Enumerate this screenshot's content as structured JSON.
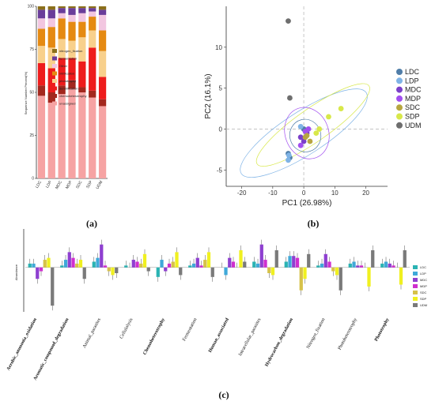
{
  "panels": {
    "a": "(a)",
    "b": "(b)",
    "c": "(c)"
  },
  "chart_data": [
    {
      "type": "bar",
      "stacked": true,
      "ylabel": "Sequence Number Percent(%)",
      "ylim": [
        0,
        100
      ],
      "yticks": [
        0,
        25,
        50,
        75,
        100
      ],
      "categories": [
        "LDC",
        "LDP",
        "MDC",
        "MDP",
        "SDC",
        "SDP",
        "UDM"
      ],
      "legend_position": "right",
      "series": [
        {
          "name": "unassigned",
          "color": "#f6a3a3",
          "values": [
            48,
            44,
            49,
            52,
            50,
            47,
            42
          ]
        },
        {
          "name": "chemoheterotrophy",
          "color": "#a3281e",
          "values": [
            6,
            6,
            5,
            5,
            3,
            4,
            4
          ]
        },
        {
          "name": "denitrification",
          "color": "#ee1c1c",
          "values": [
            13,
            14,
            16,
            13,
            15,
            25,
            13
          ]
        },
        {
          "name": "phototrophy",
          "color": "#f8d08c",
          "values": [
            10,
            12,
            11,
            10,
            14,
            10,
            15
          ]
        },
        {
          "name": "nitrification",
          "color": "#e58a12",
          "values": [
            10,
            12,
            12,
            11,
            9,
            8,
            12
          ]
        },
        {
          "name": "Other",
          "color": "#f2c6e0",
          "values": [
            6,
            5,
            3,
            4,
            5,
            3,
            9
          ]
        },
        {
          "name": "fermentation",
          "color": "#6a3d9a",
          "values": [
            5,
            5,
            3,
            4,
            3,
            2,
            3
          ]
        },
        {
          "name": "nitrogen_fixation",
          "color": "#8b6f1a",
          "values": [
            2,
            2,
            1,
            1,
            1,
            1,
            2
          ]
        }
      ],
      "legend_order": [
        "nitrogen_fixation",
        "fermentation",
        "Other",
        "nitrification",
        "phototrophy",
        "denitrification",
        "chemoheterotrophy",
        "unassigned"
      ]
    },
    {
      "type": "scatter",
      "xlabel": "PC1 (26.98%)",
      "ylabel": "PC2 (16.1%)",
      "xlim": [
        -25,
        27
      ],
      "ylim": [
        -7,
        15
      ],
      "xticks": [
        -20,
        -10,
        0,
        10,
        20
      ],
      "yticks": [
        -5,
        0,
        5,
        10
      ],
      "legend_position": "right",
      "series": [
        {
          "name": "LDC",
          "color": "#4f7da8",
          "points": [
            [
              -5,
              -3
            ],
            [
              -4.5,
              -3.5
            ],
            [
              0,
              0
            ]
          ]
        },
        {
          "name": "LDP",
          "color": "#7fb3e6",
          "points": [
            [
              -5,
              -3.8
            ],
            [
              -4.8,
              -3.2
            ],
            [
              -1,
              0.3
            ]
          ]
        },
        {
          "name": "MDC",
          "color": "#7b3fc9",
          "points": [
            [
              -1,
              -1
            ],
            [
              0,
              -1.5
            ],
            [
              1,
              -0.5
            ]
          ]
        },
        {
          "name": "MDP",
          "color": "#a24ff0",
          "points": [
            [
              -1,
              -2
            ],
            [
              0.5,
              -0.3
            ],
            [
              1.5,
              0
            ]
          ]
        },
        {
          "name": "SDC",
          "color": "#b7a640",
          "points": [
            [
              2,
              -1.5
            ],
            [
              1,
              -0.8
            ],
            [
              0.5,
              -1
            ]
          ]
        },
        {
          "name": "SDP",
          "color": "#d8e84a",
          "points": [
            [
              5,
              0
            ],
            [
              8,
              1.5
            ],
            [
              12,
              2.5
            ],
            [
              4,
              -0.5
            ]
          ]
        },
        {
          "name": "UDM",
          "color": "#6e6e6e",
          "points": [
            [
              -5,
              13.2
            ],
            [
              -4.5,
              3.8
            ]
          ]
        }
      ]
    },
    {
      "type": "bar",
      "ylabel": "Abundance",
      "legend_position": "right",
      "categories": [
        "Aerobic_ammonia_oxidation",
        "Aromatic_compound_degradation",
        "Animal_parasites",
        "Cellulolysis",
        "Chemoheterotrophy",
        "Fermentation",
        "Human_associated",
        "Intracellular_parasites",
        "Hydrocarbon_degradation",
        "Nitrogen_fixation",
        "Photoheterotrophy",
        "Phototrophy"
      ],
      "bold_categories": [
        "Aerobic_ammonia_oxidation",
        "Aromatic_compound_degradation",
        "Chemoheterotrophy",
        "Human_associated",
        "Hydrocarbon_degradation",
        "Phototrophy"
      ],
      "series": [
        {
          "name": "LDC",
          "color": "#2ab3b3",
          "values": [
            0.2,
            0.1,
            0.3,
            0.1,
            -0.5,
            0.1,
            0.0,
            0.3,
            0.3,
            0.1,
            0.2,
            0.2
          ]
        },
        {
          "name": "LDP",
          "color": "#3fa9d9",
          "values": [
            0.2,
            0.4,
            0.5,
            0.0,
            0.4,
            0.2,
            -0.4,
            0.2,
            0.6,
            0.2,
            0.3,
            0.3
          ]
        },
        {
          "name": "MDC",
          "color": "#8e3fd0",
          "values": [
            -0.6,
            0.8,
            1.2,
            0.4,
            -0.2,
            0.5,
            0.5,
            1.2,
            0.6,
            0.7,
            0.1,
            0.2
          ]
        },
        {
          "name": "MDP",
          "color": "#cf2fcf",
          "values": [
            -0.2,
            0.5,
            0.1,
            0.3,
            0.2,
            0.1,
            0.3,
            0.4,
            0.5,
            0.3,
            0.1,
            0.1
          ]
        },
        {
          "name": "SDC",
          "color": "#d6c24a",
          "values": [
            0.4,
            0.2,
            -0.2,
            0.2,
            0.3,
            0.4,
            0.0,
            -0.3,
            -1.2,
            -0.2,
            0.0,
            0.0
          ]
        },
        {
          "name": "SDP",
          "color": "#f0f020",
          "values": [
            0.5,
            0.4,
            -0.4,
            0.7,
            0.8,
            0.8,
            0.9,
            -0.4,
            -0.6,
            -0.4,
            -1.0,
            -0.9
          ]
        },
        {
          "name": "UDM",
          "color": "#7a7a7a",
          "values": [
            -2.0,
            -0.6,
            -0.3,
            -0.2,
            -0.4,
            -0.5,
            0.3,
            0.9,
            0.7,
            -1.2,
            0.9,
            0.9
          ]
        }
      ]
    }
  ]
}
